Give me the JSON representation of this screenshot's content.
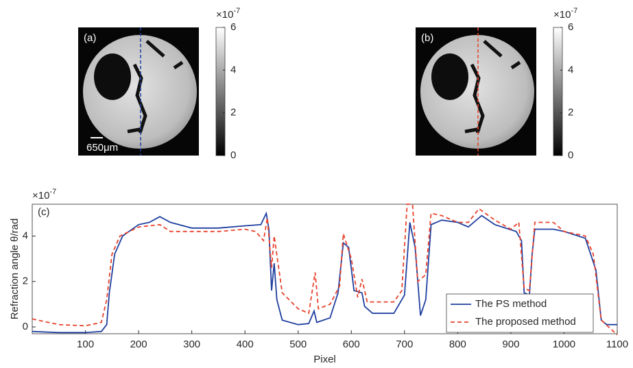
{
  "chart_data": [
    {
      "type": "image",
      "label": "(a)",
      "scale_bar": "650μm",
      "cut_color": "#1f3f9f",
      "colorbar": {
        "ylim": [
          0,
          6
        ],
        "yticks": [
          0,
          2,
          4,
          6
        ],
        "multiplier": "×10",
        "exponent": "-7"
      }
    },
    {
      "type": "image",
      "label": "(b)",
      "cut_color": "#e8412b",
      "colorbar": {
        "ylim": [
          0,
          6
        ],
        "yticks": [
          0,
          2,
          4,
          6
        ],
        "multiplier": "×10",
        "exponent": "-7"
      }
    },
    {
      "type": "line",
      "label": "(c)",
      "xlabel": "Pixel",
      "ylabel": "Refraction angle θ/rad",
      "multiplier": "×10",
      "exponent": "-7",
      "xlim": [
        0,
        1100
      ],
      "xticks": [
        100,
        200,
        300,
        400,
        500,
        600,
        700,
        800,
        900,
        1000,
        1100
      ],
      "ylim": [
        -0.3,
        5.4
      ],
      "yticks": [
        0,
        2,
        4
      ],
      "legend": "lower right",
      "series": [
        {
          "name": "The PS method",
          "color": "#1f3f9f",
          "dash": false,
          "x": [
            0,
            50,
            100,
            130,
            140,
            145,
            155,
            170,
            200,
            220,
            240,
            260,
            300,
            350,
            400,
            430,
            440,
            445,
            450,
            455,
            460,
            470,
            500,
            520,
            530,
            535,
            560,
            575,
            585,
            595,
            605,
            620,
            625,
            640,
            680,
            700,
            710,
            720,
            730,
            740,
            750,
            770,
            800,
            820,
            845,
            870,
            910,
            920,
            925,
            935,
            940,
            945,
            980,
            1000,
            1040,
            1060,
            1070,
            1080,
            1100
          ],
          "values": [
            -0.2,
            -0.25,
            -0.25,
            -0.2,
            0.1,
            1.5,
            3.2,
            4.0,
            4.5,
            4.6,
            4.85,
            4.6,
            4.35,
            4.35,
            4.45,
            4.5,
            5.0,
            4.3,
            1.6,
            2.8,
            1.2,
            0.3,
            0.1,
            0.15,
            0.7,
            0.2,
            0.4,
            1.5,
            3.7,
            3.5,
            1.6,
            1.5,
            0.9,
            0.6,
            0.6,
            1.4,
            4.6,
            3.5,
            0.5,
            1.2,
            4.5,
            4.7,
            4.6,
            4.4,
            4.9,
            4.5,
            4.2,
            3.8,
            1.5,
            1.4,
            3.2,
            4.3,
            4.3,
            4.2,
            3.9,
            2.5,
            0.3,
            0.1,
            0.1
          ]
        },
        {
          "name": "The proposed method",
          "color": "#e8412b",
          "dash": true,
          "x": [
            0,
            50,
            100,
            130,
            140,
            150,
            165,
            200,
            240,
            260,
            300,
            350,
            400,
            420,
            435,
            442,
            450,
            455,
            470,
            500,
            520,
            532,
            538,
            560,
            578,
            585,
            600,
            612,
            620,
            630,
            680,
            695,
            705,
            715,
            725,
            740,
            750,
            770,
            800,
            820,
            840,
            870,
            900,
            915,
            925,
            935,
            945,
            980,
            1000,
            1040,
            1055,
            1070,
            1100
          ],
          "values": [
            0.35,
            0.1,
            0.05,
            0.2,
            1.2,
            3.2,
            4.0,
            4.4,
            4.5,
            4.2,
            4.2,
            4.2,
            4.3,
            4.2,
            3.8,
            4.8,
            2.6,
            4.0,
            1.5,
            0.8,
            0.6,
            2.4,
            0.8,
            1.0,
            1.8,
            4.1,
            3.0,
            1.3,
            2.1,
            1.1,
            1.1,
            1.6,
            5.4,
            5.4,
            2.0,
            2.3,
            5.0,
            4.9,
            4.6,
            4.6,
            5.2,
            4.7,
            4.3,
            4.6,
            1.7,
            1.6,
            4.6,
            4.6,
            4.2,
            4.0,
            3.2,
            0.3,
            -0.35
          ]
        }
      ]
    }
  ]
}
